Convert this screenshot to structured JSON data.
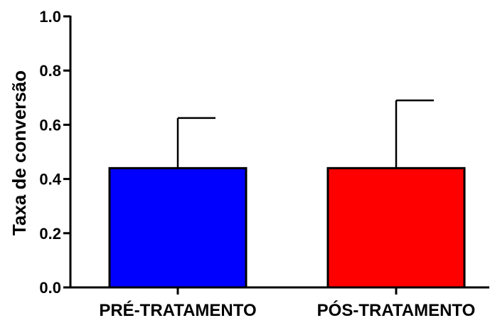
{
  "chart_data": {
    "type": "bar",
    "title": "",
    "xlabel": "",
    "ylabel": "Taxa de conversão",
    "ylim": [
      0,
      1.0
    ],
    "yticks": [
      "0.0",
      "0.2",
      "0.4",
      "0.6",
      "0.8",
      "1.0"
    ],
    "grid": false,
    "categories": [
      "PRÉ-TRATAMENTO",
      "PÓS-TRATAMENTO"
    ],
    "values": [
      0.44,
      0.44
    ],
    "errors": [
      0.185,
      0.25
    ],
    "colors": [
      "#0000ff",
      "#ff0000"
    ]
  }
}
